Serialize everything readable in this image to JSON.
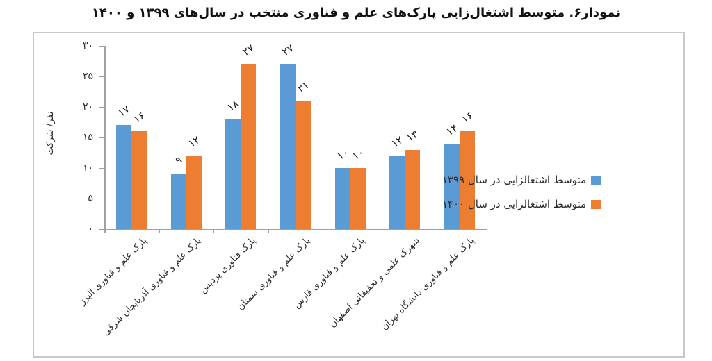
{
  "title": "نمودار۶. متوسط اشتغال‌زایی پارک‌های علم و فناوری منتخب در سال‌های ۱۳۹۹ و ۱۴۰۰",
  "colors": {
    "series_1399": "#5B9BD5",
    "series_1400": "#ED7D31",
    "axis": "#a0a0a0",
    "frame_border": "#c8c8c8",
    "text": "#2b2b2b"
  },
  "legend": {
    "items": [
      {
        "label": "متوسط اشتغالزایی در سال ۱۳۹۹",
        "color": "#5B9BD5"
      },
      {
        "label": "متوسط اشتغالزایی در سال ۱۴۰۰",
        "color": "#ED7D31"
      }
    ]
  },
  "chart_data": {
    "type": "bar",
    "title": "نمودار۶. متوسط اشتغال‌زایی پارک‌های علم و فناوری منتخب در سال‌های ۱۳۹۹ و ۱۴۰۰",
    "xlabel": "",
    "ylabel": "نفر/ شرکت",
    "ylim": [
      0,
      30
    ],
    "grid": false,
    "legend_position": "right",
    "ytick_values": [
      0,
      5,
      10,
      15,
      20,
      25,
      30
    ],
    "ytick_labels": [
      "۰",
      "۵",
      "۱۰",
      "۱۵",
      "۲۰",
      "۲۵",
      "۳۰"
    ],
    "categories": [
      "پارک علم و فناوری البرز",
      "پارک علم و فناوری آذربایجان شرقی",
      "پارک فناوری پردیس",
      "پارک علم و فناوری سمنان",
      "پارک علم و فناوری فارس",
      "شهرک علمی و تحقیقاتی اصفهان",
      "پارک علم و فناوری دانشگاه تهران"
    ],
    "series": [
      {
        "name": "متوسط اشتغالزایی در سال ۱۳۹۹",
        "color": "#5B9BD5",
        "values": [
          17,
          9,
          18,
          27,
          10,
          12,
          14
        ],
        "labels": [
          "۱۷",
          "۹",
          "۱۸",
          "۲۷",
          "۱۰",
          "۱۲",
          "۱۴"
        ]
      },
      {
        "name": "متوسط اشتغالزایی در سال ۱۴۰۰",
        "color": "#ED7D31",
        "values": [
          16,
          12,
          27,
          21,
          10,
          13,
          16
        ],
        "labels": [
          "۱۶",
          "۱۲",
          "۲۷",
          "۲۱",
          "۱۰",
          "۱۳",
          "۱۶"
        ]
      }
    ]
  }
}
